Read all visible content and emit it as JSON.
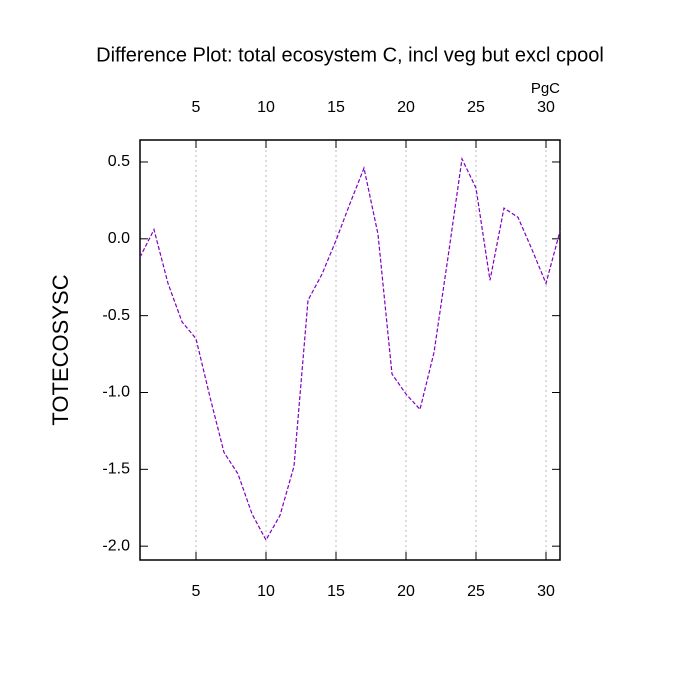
{
  "chart_data": {
    "type": "line",
    "title": "Difference Plot: total ecosystem C, incl veg but excl cpool",
    "y_label": "TOTECOSYSC",
    "top_axis_label": "PgC",
    "x": [
      1,
      2,
      3,
      4,
      5,
      6,
      7,
      8,
      9,
      10,
      11,
      12,
      13,
      14,
      15,
      16,
      17,
      18,
      19,
      20,
      21,
      22,
      23,
      24,
      25,
      26,
      27,
      28,
      29,
      30,
      31
    ],
    "series": [
      {
        "color": "#8000c0",
        "values": [
          -0.12,
          0.06,
          -0.29,
          -0.54,
          -0.65,
          -1.03,
          -1.39,
          -1.53,
          -1.79,
          -1.96,
          -1.8,
          -1.48,
          -0.4,
          -0.23,
          -0.01,
          0.23,
          0.46,
          0.03,
          -0.88,
          -1.01,
          -1.11,
          -0.74,
          -0.12,
          0.52,
          0.33,
          -0.27,
          0.2,
          0.14,
          -0.07,
          -0.29,
          0.05
        ]
      }
    ],
    "xlim": [
      1,
      31
    ],
    "xticks": [
      5,
      10,
      15,
      20,
      25,
      30
    ],
    "ylim": [
      -2.09,
      0.643
    ],
    "yticks": [
      {
        "value": 0.5,
        "label": "0.5"
      },
      {
        "value": 0,
        "label": "0.0"
      },
      {
        "value": -0.5,
        "label": "-0.5"
      },
      {
        "value": -1,
        "label": "-1.0"
      },
      {
        "value": -1.5,
        "label": "-1.5"
      },
      {
        "value": -2,
        "label": "-2.0"
      }
    ],
    "bottom_tick_color": "#ff0000",
    "top_tick_color": "#0000ff",
    "grid": true
  }
}
